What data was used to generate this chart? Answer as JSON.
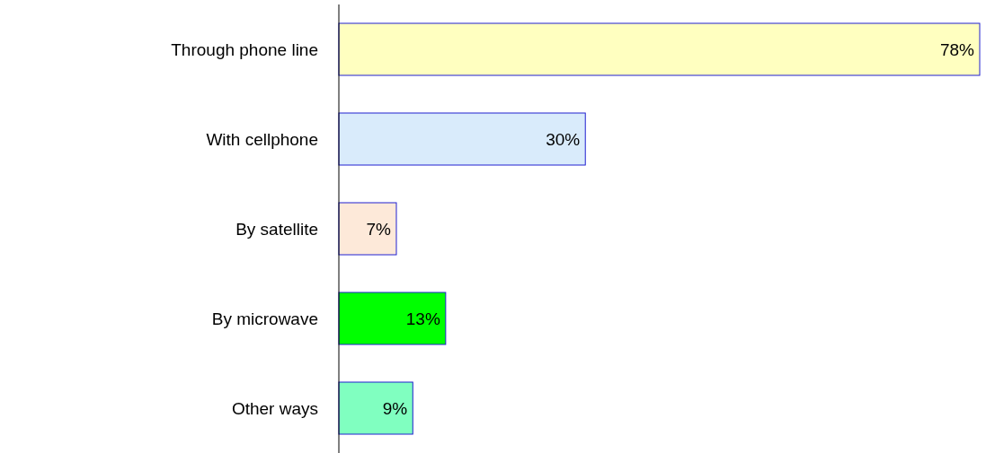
{
  "chart_data": {
    "type": "bar",
    "orientation": "horizontal",
    "categories": [
      "Through phone line",
      "With cellphone",
      "By satellite",
      "By microwave",
      "Other ways"
    ],
    "values": [
      78,
      30,
      7,
      13,
      9
    ],
    "colors": [
      "#ffffc0",
      "#d9ebfb",
      "#fde9d9",
      "#00ff00",
      "#80ffc0"
    ],
    "value_labels": [
      "78%",
      "30%",
      "7%",
      "13%",
      "9%"
    ]
  }
}
